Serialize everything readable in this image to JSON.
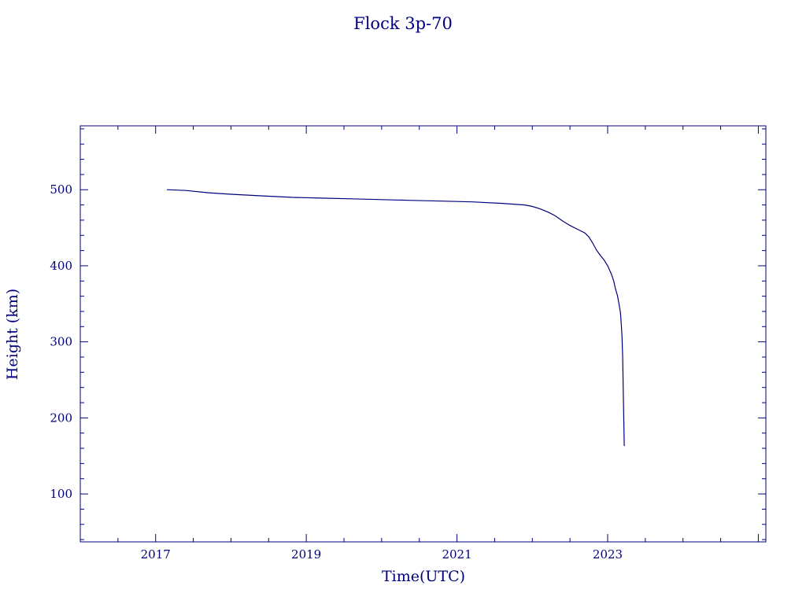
{
  "chart_data": {
    "type": "line",
    "title": "Flock 3p-70",
    "xlabel": "Time(UTC)",
    "ylabel": "Height (km)",
    "xlim": [
      2016.0,
      2025.1
    ],
    "ylim": [
      37,
      584
    ],
    "xticks": [
      2017,
      2019,
      2021,
      2023
    ],
    "yticks": [
      100,
      200,
      300,
      400,
      500
    ],
    "grid": false,
    "line_color": "#00007f",
    "series": [
      {
        "x": [
          2017.15,
          2017.4,
          2017.7,
          2018.0,
          2018.4,
          2018.8,
          2019.2,
          2019.6,
          2020.0,
          2020.4,
          2020.8,
          2021.2,
          2021.6,
          2021.9,
          2022.0,
          2022.1,
          2022.2,
          2022.3,
          2022.4,
          2022.5,
          2022.6,
          2022.7,
          2022.75,
          2022.8,
          2022.85,
          2022.9,
          2022.95,
          2023.0,
          2023.05,
          2023.08,
          2023.1,
          2023.13,
          2023.15,
          2023.17,
          2023.18,
          2023.19,
          2023.2,
          2023.21,
          2023.22
        ],
        "y": [
          500,
          499,
          496,
          494,
          492,
          490,
          489,
          488,
          487,
          486,
          485,
          484,
          482,
          480,
          478,
          475,
          471,
          466,
          459,
          453,
          448,
          443,
          438,
          430,
          421,
          414,
          408,
          400,
          389,
          380,
          371,
          361,
          350,
          338,
          325,
          308,
          280,
          220,
          163
        ]
      }
    ]
  }
}
